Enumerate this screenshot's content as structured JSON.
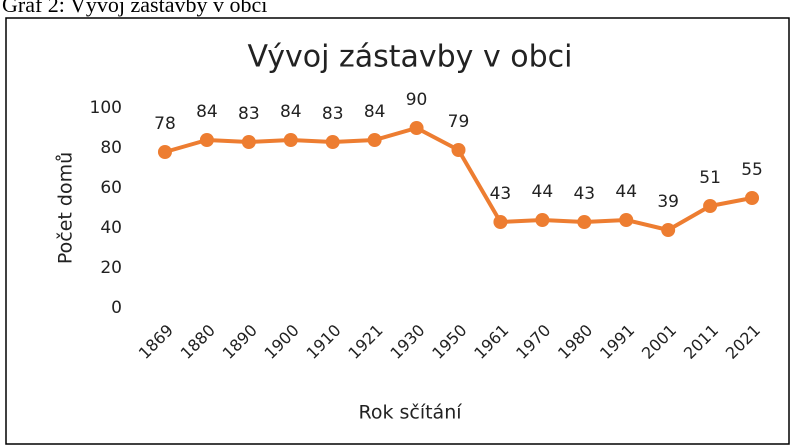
{
  "chart_data": {
    "type": "line",
    "caption": "Graf 2: Vývoj zástavby v obci",
    "title": "Vývoj zástavby v obci",
    "x_label": "Rok sčítání",
    "y_label": "Počet domů",
    "categories": [
      "1869",
      "1880",
      "1890",
      "1900",
      "1910",
      "1921",
      "1930",
      "1950",
      "1961",
      "1970",
      "1980",
      "1991",
      "2001",
      "2011",
      "2021"
    ],
    "series": [
      {
        "name": "Počet domů",
        "color": "#ed7d31",
        "values": [
          78,
          84,
          83,
          84,
          83,
          84,
          90,
          79,
          43,
          44,
          43,
          44,
          39,
          51,
          55
        ]
      }
    ],
    "ylim": [
      0,
      100
    ],
    "yticks": [
      0,
      20,
      40,
      60,
      80,
      100
    ],
    "grid": false
  }
}
